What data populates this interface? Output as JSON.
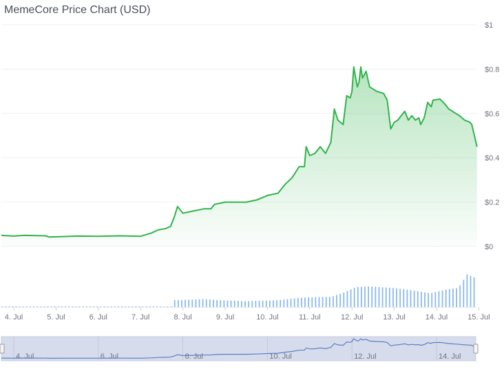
{
  "chart_data": {
    "type": "area",
    "title": "MemeCore Price Chart (USD)",
    "xlabel": "",
    "ylabel": "",
    "y_ticks": [
      "$0",
      "$0.2",
      "$0.4",
      "$0.6",
      "$0.8",
      "$1"
    ],
    "y_tick_values": [
      0,
      0.2,
      0.4,
      0.6,
      0.8,
      1
    ],
    "ylim": [
      0,
      1
    ],
    "x_ticks": [
      "4. Jul",
      "5. Jul",
      "6. Jul",
      "7. Jul",
      "8. Jul",
      "9. Jul",
      "10. Jul",
      "11. Jul",
      "12. Jul",
      "13. Jul",
      "14. Jul",
      "15. Jul"
    ],
    "navigator_ticks": [
      "4. Jul",
      "6. Jul",
      "8. Jul",
      "10. Jul",
      "12. Jul",
      "14. Jul"
    ],
    "grid": true,
    "colors": {
      "price_line": "#2fb34a",
      "price_fill": "#2fb34a",
      "volume": "#8bb8ec",
      "navigator_bg": "#d6dcec",
      "navigator_line": "#5b7fc4"
    },
    "series": [
      {
        "kind": "price",
        "x": [
          "Jul 3 17:00",
          "Jul 4 00:00",
          "Jul 4 06:00",
          "Jul 4 18:00",
          "Jul 4 20:00",
          "Jul 5 06:00",
          "Jul 5 12:00",
          "Jul 6 00:00",
          "Jul 6 12:00",
          "Jul 7 00:00",
          "Jul 7 06:00",
          "Jul 7 10:00",
          "Jul 7 14:00",
          "Jul 7 17:00",
          "Jul 7 19:00",
          "Jul 7 21:00",
          "Jul 8 00:00",
          "Jul 8 06:00",
          "Jul 8 12:00",
          "Jul 8 16:00",
          "Jul 8 18:00",
          "Jul 9 00:00",
          "Jul 9 12:00",
          "Jul 9 18:00",
          "Jul 10 00:00",
          "Jul 10 06:00",
          "Jul 10 10:00",
          "Jul 10 14:00",
          "Jul 10 18:00",
          "Jul 10 21:00",
          "Jul 10 22:00",
          "Jul 11 00:00",
          "Jul 11 03:00",
          "Jul 11 06:00",
          "Jul 11 09:00",
          "Jul 11 12:00",
          "Jul 11 14:00",
          "Jul 11 16:00",
          "Jul 11 19:00",
          "Jul 11 21:00",
          "Jul 11 23:00",
          "Jul 12 00:00",
          "Jul 12 01:00",
          "Jul 12 03:00",
          "Jul 12 04:00",
          "Jul 12 05:00",
          "Jul 12 06:00",
          "Jul 12 08:00",
          "Jul 12 10:00",
          "Jul 12 14:00",
          "Jul 12 18:00",
          "Jul 12 20:00",
          "Jul 12 22:00",
          "Jul 13 00:00",
          "Jul 13 02:00",
          "Jul 13 04:00",
          "Jul 13 06:00",
          "Jul 13 08:00",
          "Jul 13 10:00",
          "Jul 13 12:00",
          "Jul 13 14:00",
          "Jul 13 15:00",
          "Jul 13 17:00",
          "Jul 13 19:00",
          "Jul 13 21:00",
          "Jul 13 22:00",
          "Jul 14 02:00",
          "Jul 14 05:00",
          "Jul 14 07:00",
          "Jul 14 11:00",
          "Jul 14 13:00",
          "Jul 14 16:00",
          "Jul 14 19:00",
          "Jul 14 20:00",
          "Jul 14 23:00"
        ],
        "values": [
          0.05,
          0.047,
          0.05,
          0.048,
          0.043,
          0.045,
          0.047,
          0.046,
          0.048,
          0.046,
          0.06,
          0.075,
          0.08,
          0.09,
          0.13,
          0.18,
          0.15,
          0.16,
          0.17,
          0.17,
          0.19,
          0.2,
          0.2,
          0.21,
          0.23,
          0.24,
          0.28,
          0.31,
          0.36,
          0.36,
          0.45,
          0.41,
          0.42,
          0.45,
          0.42,
          0.47,
          0.62,
          0.57,
          0.55,
          0.68,
          0.67,
          0.7,
          0.81,
          0.72,
          0.74,
          0.81,
          0.76,
          0.79,
          0.72,
          0.7,
          0.69,
          0.66,
          0.53,
          0.56,
          0.57,
          0.59,
          0.61,
          0.57,
          0.59,
          0.57,
          0.58,
          0.55,
          0.58,
          0.65,
          0.63,
          0.66,
          0.665,
          0.64,
          0.62,
          0.6,
          0.59,
          0.57,
          0.56,
          0.55,
          0.45
        ]
      },
      {
        "kind": "volume_relative",
        "x": [
          "Jul 3 17:00",
          "Jul 7 17:00",
          "Jul 7 19:00",
          "Jul 8 12:00",
          "Jul 8 20:00",
          "Jul 9 12:00",
          "Jul 10 06:00",
          "Jul 10 18:00",
          "Jul 11 12:00",
          "Jul 11 18:00",
          "Jul 12 02:00",
          "Jul 12 10:00",
          "Jul 13 00:00",
          "Jul 13 12:00",
          "Jul 13 20:00",
          "Jul 14 06:00",
          "Jul 14 12:00",
          "Jul 14 17:00",
          "Jul 14 23:00"
        ],
        "values": [
          0.02,
          0.02,
          0.2,
          0.23,
          0.2,
          0.17,
          0.2,
          0.27,
          0.3,
          0.4,
          0.58,
          0.6,
          0.55,
          0.47,
          0.4,
          0.52,
          0.55,
          0.95,
          0.82
        ]
      }
    ]
  }
}
